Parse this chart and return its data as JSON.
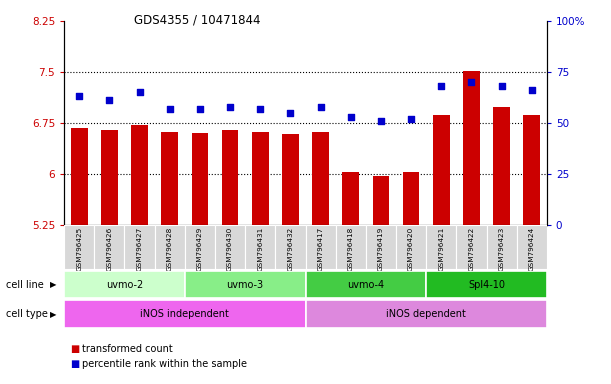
{
  "title": "GDS4355 / 10471844",
  "samples": [
    "GSM796425",
    "GSM796426",
    "GSM796427",
    "GSM796428",
    "GSM796429",
    "GSM796430",
    "GSM796431",
    "GSM796432",
    "GSM796417",
    "GSM796418",
    "GSM796419",
    "GSM796420",
    "GSM796421",
    "GSM796422",
    "GSM796423",
    "GSM796424"
  ],
  "bar_values": [
    6.67,
    6.65,
    6.72,
    6.62,
    6.6,
    6.64,
    6.62,
    6.58,
    6.62,
    6.03,
    5.97,
    6.02,
    6.87,
    7.52,
    6.98,
    6.87
  ],
  "dot_values": [
    63,
    61,
    65,
    57,
    57,
    58,
    57,
    55,
    58,
    53,
    51,
    52,
    68,
    70,
    68,
    66
  ],
  "bar_color": "#cc0000",
  "dot_color": "#0000cc",
  "ylim_left": [
    5.25,
    8.25
  ],
  "ylim_right": [
    0,
    100
  ],
  "yticks_left": [
    5.25,
    6.0,
    6.75,
    7.5,
    8.25
  ],
  "yticks_right": [
    0,
    25,
    50,
    75,
    100
  ],
  "ytick_labels_left": [
    "5.25",
    "6",
    "6.75",
    "7.5",
    "8.25"
  ],
  "ytick_labels_right": [
    "0",
    "25",
    "50",
    "75",
    "100%"
  ],
  "hlines": [
    6.0,
    6.75,
    7.5
  ],
  "cell_lines": [
    {
      "label": "uvmo-2",
      "start": 0,
      "end": 4,
      "color": "#ccffcc"
    },
    {
      "label": "uvmo-3",
      "start": 4,
      "end": 8,
      "color": "#88ee88"
    },
    {
      "label": "uvmo-4",
      "start": 8,
      "end": 12,
      "color": "#44cc44"
    },
    {
      "label": "Spl4-10",
      "start": 12,
      "end": 16,
      "color": "#22bb22"
    }
  ],
  "cell_types": [
    {
      "label": "iNOS independent",
      "start": 0,
      "end": 8,
      "color": "#ee66ee"
    },
    {
      "label": "iNOS dependent",
      "start": 8,
      "end": 16,
      "color": "#dd88dd"
    }
  ],
  "legend_bar_label": "transformed count",
  "legend_dot_label": "percentile rank within the sample",
  "cell_line_label": "cell line",
  "cell_type_label": "cell type",
  "bar_width": 0.55,
  "plot_bg": "#ffffff",
  "tick_area_bg": "#d8d8d8"
}
